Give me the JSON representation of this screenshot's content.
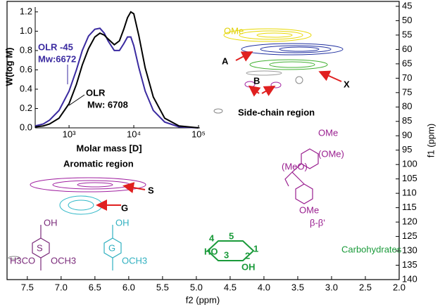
{
  "chart_data": [
    {
      "type": "nmr",
      "xlabel": "f2 (ppm)",
      "ylabel": "f1 (ppm)",
      "xlim": [
        7.8,
        2.0
      ],
      "xticks": [
        7.5,
        {
          "value": 7.0,
          "label": "7.0"
        },
        6.5,
        {
          "value": 6.0,
          "label": "6.0"
        },
        5.5,
        {
          "value": 5.0,
          "label": "5.0"
        },
        4.5,
        {
          "value": 4.0,
          "label": "4.0"
        },
        3.5,
        {
          "value": 3.0,
          "label": "3.0"
        },
        2.5,
        {
          "value": 2.0,
          "label": "2.0"
        }
      ],
      "ylim": [
        43.3,
        140
      ],
      "yticks": [
        45,
        50,
        55,
        60,
        65,
        70,
        75,
        80,
        85,
        90,
        95,
        100,
        105,
        110,
        115,
        120,
        125,
        130,
        135,
        140
      ],
      "annotations": [
        {
          "text": "OMe",
          "color": "#e0d000"
        },
        {
          "text": "A",
          "color": "#000000"
        },
        {
          "text": "X",
          "color": "#000000"
        },
        {
          "text": "B",
          "color": "#000000"
        },
        {
          "text": "Side-chain region",
          "color": "#000000"
        },
        {
          "text": "Aromatic region",
          "color": "#000000"
        },
        {
          "text": "S",
          "color": "#000000"
        },
        {
          "text": "G",
          "color": "#000000"
        },
        {
          "text": "β-β'",
          "color": "#9a2090"
        },
        {
          "text": "Carbohydrates",
          "color": "#1a9a3a"
        }
      ],
      "structure_labels": [
        {
          "text": "OH",
          "color": "#7a2a7a"
        },
        {
          "text": "S",
          "color": "#7a2a7a"
        },
        {
          "text": "H3CO",
          "color": "#7a2a7a"
        },
        {
          "text": "OCH3",
          "color": "#7a2a7a"
        },
        {
          "text": "OH",
          "color": "#30b0c0"
        },
        {
          "text": "G",
          "color": "#30b0c0"
        },
        {
          "text": "OCH3",
          "color": "#30b0c0"
        },
        {
          "text": "OMe",
          "color": "#9a2090"
        },
        {
          "text": "(OMe)",
          "color": "#9a2090"
        },
        {
          "text": "(MeO)",
          "color": "#9a2090"
        },
        {
          "text": "OMe",
          "color": "#9a2090"
        },
        {
          "text": "HO",
          "color": "#1a9a3a"
        },
        {
          "text": "OH",
          "color": "#1a9a3a"
        },
        {
          "text": "1",
          "color": "#1a9a3a"
        },
        {
          "text": "2",
          "color": "#1a9a3a"
        },
        {
          "text": "3",
          "color": "#1a9a3a"
        },
        {
          "text": "4",
          "color": "#1a9a3a"
        },
        {
          "text": "5",
          "color": "#1a9a3a"
        }
      ]
    },
    {
      "type": "line",
      "xlabel": "Molar mass [D]",
      "ylabel": "W(log M)",
      "log_x": true,
      "xlim": [
        300,
        100000
      ],
      "xticks": [
        {
          "value": 1000,
          "label": "10³"
        },
        {
          "value": 10000,
          "label": "10⁴"
        },
        {
          "value": 100000,
          "label": "10⁵"
        }
      ],
      "ylim": [
        0,
        1.25
      ],
      "yticks": [
        {
          "value": 0,
          "label": "0.0"
        },
        0.2,
        0.4,
        0.6,
        0.8,
        {
          "value": 1,
          "label": "1.0"
        },
        1.2
      ],
      "x": [
        300,
        400,
        500,
        700,
        1000,
        1300,
        1600,
        2000,
        2500,
        3000,
        3500,
        4000,
        5000,
        6000,
        7000,
        8000,
        9000,
        10000,
        12000,
        15000,
        20000,
        30000,
        50000,
        100000
      ],
      "series": [
        {
          "name": "OLR -45",
          "color": "#3a2aa0",
          "values": [
            0.02,
            0.04,
            0.08,
            0.18,
            0.38,
            0.6,
            0.8,
            0.95,
            1.02,
            1.03,
            0.98,
            0.9,
            0.8,
            0.8,
            0.87,
            0.94,
            0.94,
            0.85,
            0.62,
            0.38,
            0.18,
            0.06,
            0.01,
            0
          ]
        },
        {
          "name": "OLR",
          "color": "#000000",
          "values": [
            0.01,
            0.02,
            0.04,
            0.1,
            0.25,
            0.45,
            0.65,
            0.82,
            0.94,
            0.98,
            0.96,
            0.92,
            0.86,
            0.9,
            1.02,
            1.14,
            1.2,
            1.18,
            0.95,
            0.62,
            0.32,
            0.1,
            0.02,
            0
          ]
        }
      ],
      "annotations": [
        {
          "text": "Mw:6672",
          "color": "#3a2aa0"
        },
        {
          "text": "Mw: 6708",
          "color": "#000000"
        }
      ]
    }
  ]
}
